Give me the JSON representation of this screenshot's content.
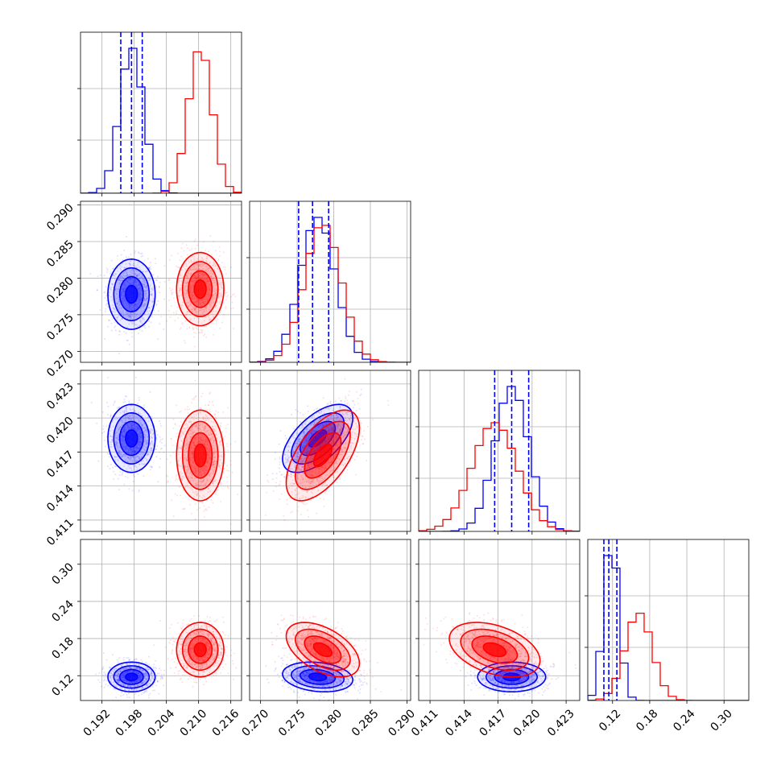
{
  "colors": {
    "series_blue": "#0000ff",
    "series_red": "#ff0000",
    "grid": "#b0b0b0",
    "axes": "#000000"
  },
  "chart_data": {
    "type": "corner",
    "grid": true,
    "parameters": [
      {
        "range": [
          0.188,
          0.218
        ],
        "ticks": [
          0.192,
          0.198,
          0.204,
          0.21,
          0.216
        ],
        "tick_labels": [
          "0.192",
          "0.198",
          "0.204",
          "0.210",
          "0.216"
        ]
      },
      {
        "range": [
          0.2685,
          0.2905
        ],
        "ticks": [
          0.27,
          0.275,
          0.28,
          0.285,
          0.29
        ],
        "tick_labels": [
          "0.270",
          "0.275",
          "0.280",
          "0.285",
          "0.290"
        ]
      },
      {
        "range": [
          0.41,
          0.4242
        ],
        "ticks": [
          0.411,
          0.414,
          0.417,
          0.42,
          0.423
        ],
        "tick_labels": [
          "0.411",
          "0.414",
          "0.417",
          "0.420",
          "0.423"
        ]
      },
      {
        "range": [
          0.08,
          0.34
        ],
        "ticks": [
          0.12,
          0.18,
          0.24,
          0.3
        ],
        "tick_labels": [
          "0.12",
          "0.18",
          "0.24",
          "0.30"
        ]
      }
    ],
    "series": [
      {
        "color": "#0000ff",
        "means": [
          0.1975,
          0.2778,
          0.4182,
          0.118
        ],
        "sds": [
          0.0022,
          0.0024,
          0.0015,
          0.012
        ],
        "quantiles": [
          [
            0.1955,
            0.1975,
            0.1995
          ],
          [
            0.2752,
            0.2771,
            0.2793
          ],
          [
            0.4167,
            0.4182,
            0.4197
          ],
          [
            0.106,
            0.114,
            0.127
          ]
        ],
        "corr": [
          [
            1,
            0,
            0,
            0
          ],
          [
            0,
            1,
            0.6,
            -0.2
          ],
          [
            0,
            0.6,
            1,
            0
          ],
          [
            0,
            -0.2,
            0,
            1
          ]
        ]
      },
      {
        "color": "#ff0000",
        "means": [
          0.2103,
          0.2785,
          0.4167,
          0.162
        ],
        "sds": [
          0.0022,
          0.0025,
          0.002,
          0.022
        ],
        "quantiles": [
          [
            0.2083,
            0.2103,
            0.2123
          ],
          [
            0.276,
            0.2785,
            0.281
          ],
          [
            0.4147,
            0.4167,
            0.4187
          ],
          [
            0.14,
            0.162,
            0.184
          ]
        ],
        "corr": [
          [
            1,
            0,
            0,
            0
          ],
          [
            0,
            1,
            0.6,
            -0.5
          ],
          [
            0,
            0.6,
            1,
            -0.4
          ],
          [
            0,
            -0.5,
            -0.4,
            1
          ]
        ]
      }
    ]
  }
}
